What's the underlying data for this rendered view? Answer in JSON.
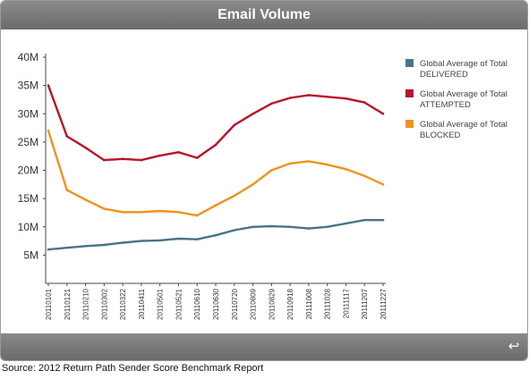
{
  "header": {
    "title": "Email Volume"
  },
  "footer": {
    "source": "Source: 2012 Return Path Sender Score Benchmark Report",
    "replay_icon": "replay-arrow-icon"
  },
  "chart_data": {
    "type": "line",
    "title": "Email Volume",
    "xlabel": "",
    "ylabel": "",
    "ylim": [
      0,
      40
    ],
    "y_unit": "M",
    "y_ticks": [
      5,
      10,
      15,
      20,
      25,
      30,
      35,
      40
    ],
    "y_tick_labels": [
      "5M",
      "10M",
      "15M",
      "20M",
      "25M",
      "30M",
      "35M",
      "40M"
    ],
    "x_tick_labels": [
      "20110101",
      "20110121",
      "20110210",
      "20110302",
      "20110322",
      "20110411",
      "20110501",
      "20110521",
      "20110610",
      "20110630",
      "20110720",
      "20110809",
      "20110829",
      "20110918",
      "20111008",
      "20111028",
      "20111117",
      "20111207",
      "20111227"
    ],
    "grid": false,
    "legend_position": "right",
    "series": [
      {
        "name": "Global Average of Total DELIVERED",
        "legend_lines": [
          "Global Average of Total",
          "DELIVERED"
        ],
        "color": "#4a7389",
        "values": [
          6.0,
          6.3,
          6.6,
          6.8,
          7.2,
          7.5,
          7.6,
          7.9,
          7.8,
          8.5,
          9.4,
          10.0,
          10.1,
          10.0,
          9.7,
          10.0,
          10.6,
          11.2,
          11.2
        ]
      },
      {
        "name": "Global Average of Total ATTEMPTED",
        "legend_lines": [
          "Global Average of Total",
          "ATTEMPTED"
        ],
        "color": "#b5152b",
        "values": [
          35.0,
          26.0,
          24.0,
          21.8,
          22.0,
          21.8,
          22.6,
          23.2,
          22.2,
          24.5,
          28.0,
          30.0,
          31.8,
          32.8,
          33.3,
          33.0,
          32.7,
          32.0,
          30.0
        ]
      },
      {
        "name": "Global Average of Total BLOCKED",
        "legend_lines": [
          "Global Average of Total",
          "BLOCKED"
        ],
        "color": "#f0921e",
        "values": [
          27.0,
          16.5,
          14.8,
          13.2,
          12.6,
          12.6,
          12.8,
          12.6,
          12.0,
          13.8,
          15.5,
          17.5,
          20.0,
          21.2,
          21.6,
          21.0,
          20.2,
          19.0,
          17.5
        ]
      }
    ]
  }
}
